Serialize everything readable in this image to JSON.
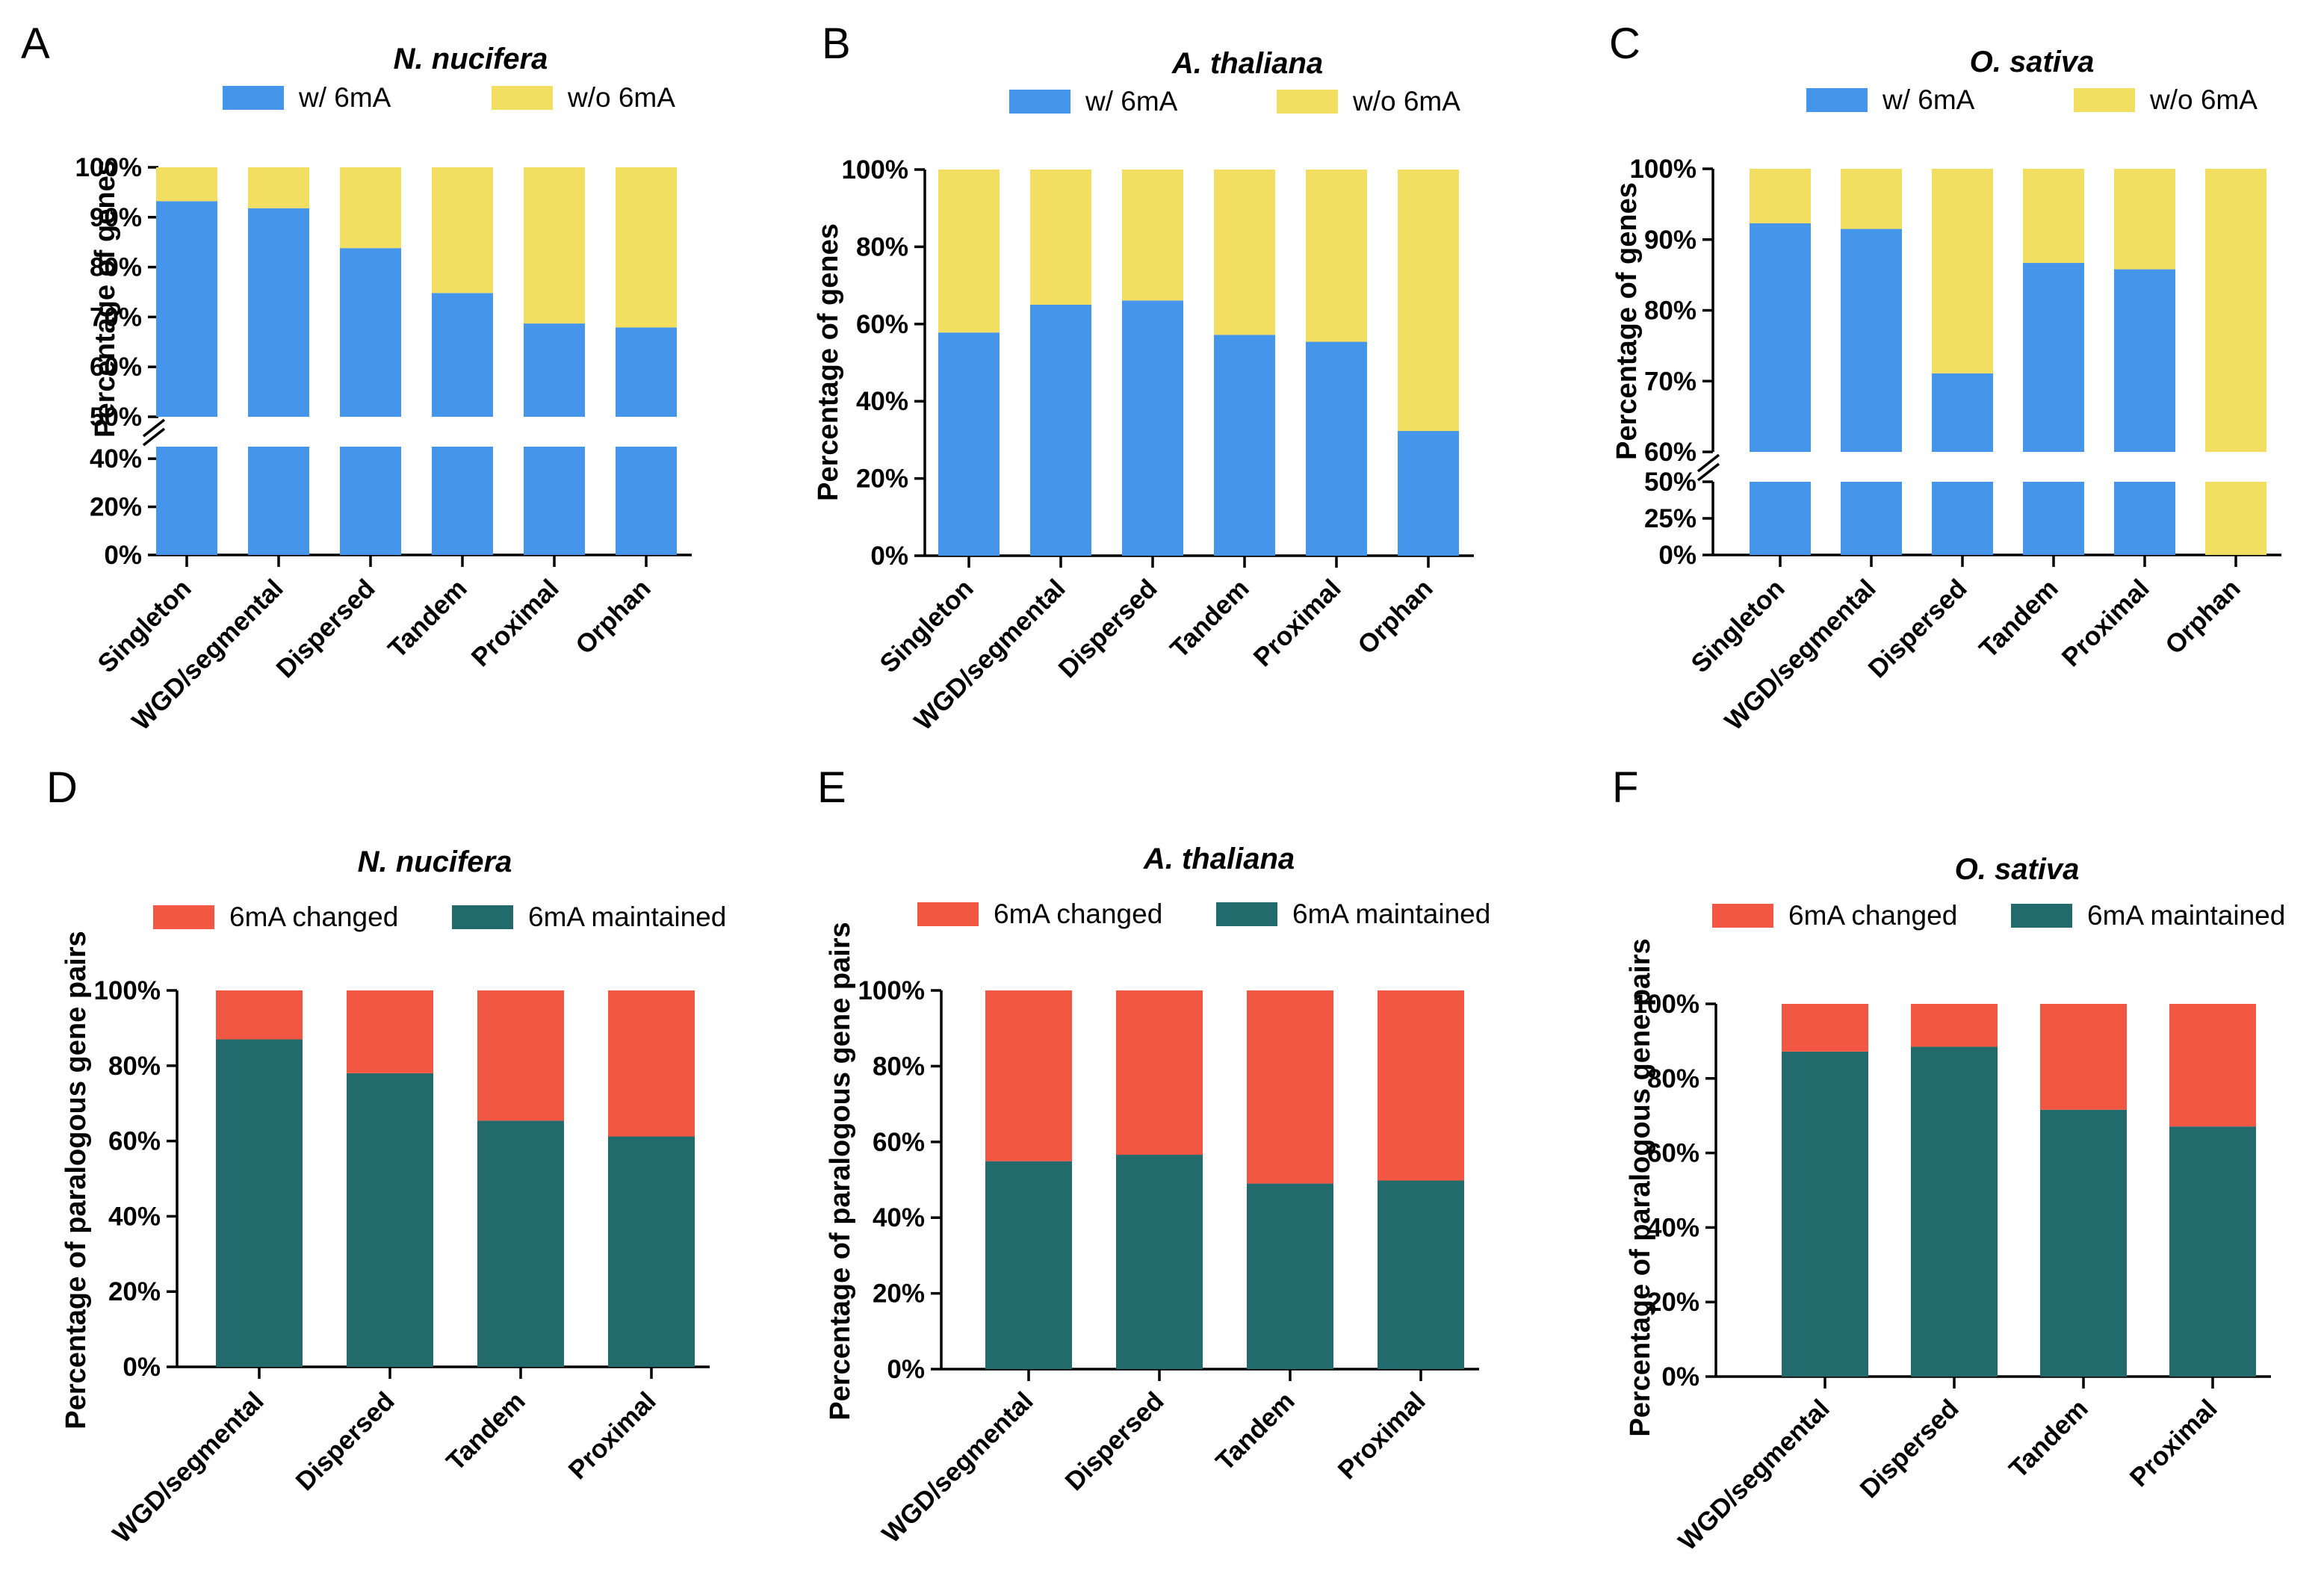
{
  "colors": {
    "with_6mA": "#4595EA",
    "without_6mA": "#F2DE60",
    "changed": "#F25744",
    "maintained": "#236A6C"
  },
  "chart_data": [
    {
      "panel": "A",
      "type": "bar",
      "stacked": true,
      "title": "N. nucifera",
      "ylabel": "Percentage of genes",
      "ylim": [
        0,
        100
      ],
      "axis_break": {
        "lower": [
          0,
          45
        ],
        "upper": [
          50,
          100
        ]
      },
      "yticks_lower": [
        "0%",
        "20%",
        "40%"
      ],
      "yticks_upper": [
        "50%",
        "60%",
        "70%",
        "80%",
        "90%",
        "100%"
      ],
      "categories": [
        "Singleton",
        "WGD/segmental",
        "Dispersed",
        "Tandem",
        "Proximal",
        "Orphan"
      ],
      "series": [
        {
          "name": "w/ 6mA",
          "color_key": "with_6mA",
          "values": [
            93.2,
            91.8,
            83.8,
            74.8,
            68.7,
            67.9
          ]
        },
        {
          "name": "w/o 6mA",
          "color_key": "without_6mA",
          "values": [
            6.8,
            8.2,
            16.2,
            25.2,
            31.3,
            32.1
          ]
        }
      ]
    },
    {
      "panel": "B",
      "type": "bar",
      "stacked": true,
      "title": "A. thaliana",
      "ylabel": "Percentage of genes",
      "ylim": [
        0,
        100
      ],
      "yticks": [
        "0%",
        "20%",
        "40%",
        "60%",
        "80%",
        "100%"
      ],
      "categories": [
        "Singleton",
        "WGD/segmental",
        "Dispersed",
        "Tandem",
        "Proximal",
        "Orphan"
      ],
      "series": [
        {
          "name": "w/ 6mA",
          "color_key": "with_6mA",
          "values": [
            57.8,
            65.0,
            66.1,
            57.2,
            55.4,
            32.3
          ]
        },
        {
          "name": "w/o 6mA",
          "color_key": "without_6mA",
          "values": [
            42.2,
            35.0,
            33.9,
            42.8,
            44.6,
            67.7
          ]
        }
      ]
    },
    {
      "panel": "C",
      "type": "bar",
      "stacked": true,
      "title": "O. sativa",
      "ylabel": "Percentage of genes",
      "ylim": [
        0,
        100
      ],
      "axis_break": {
        "lower": [
          0,
          50
        ],
        "upper": [
          60,
          100
        ]
      },
      "yticks_lower": [
        "0%",
        "25%",
        "50%"
      ],
      "yticks_upper": [
        "60%",
        "70%",
        "80%",
        "90%",
        "100%"
      ],
      "categories": [
        "Singleton",
        "WGD/segmental",
        "Dispersed",
        "Tandem",
        "Proximal",
        "Orphan"
      ],
      "series": [
        {
          "name": "w/ 6mA",
          "color_key": "with_6mA",
          "values": [
            92.3,
            91.5,
            71.1,
            86.7,
            85.8,
            0
          ]
        },
        {
          "name": "w/o 6mA",
          "color_key": "without_6mA",
          "values": [
            7.7,
            8.5,
            28.9,
            13.3,
            14.2,
            100
          ]
        }
      ]
    },
    {
      "panel": "D",
      "type": "bar",
      "stacked": true,
      "title": "N. nucifera",
      "ylabel": "Percentage of paralogous gene pairs",
      "ylim": [
        0,
        100
      ],
      "yticks": [
        "0%",
        "20%",
        "40%",
        "60%",
        "80%",
        "100%"
      ],
      "categories": [
        "WGD/segmental",
        "Dispersed",
        "Tandem",
        "Proximal"
      ],
      "series": [
        {
          "name": "6mA maintained",
          "color_key": "maintained",
          "values": [
            87.0,
            78.0,
            65.4,
            61.2
          ]
        },
        {
          "name": "6mA changed",
          "color_key": "changed",
          "values": [
            13.0,
            22.0,
            34.6,
            38.8
          ]
        }
      ]
    },
    {
      "panel": "E",
      "type": "bar",
      "stacked": true,
      "title": "A. thaliana",
      "ylabel": "Percentage of paralogous gene pairs",
      "ylim": [
        0,
        100
      ],
      "yticks": [
        "0%",
        "20%",
        "40%",
        "60%",
        "80%",
        "100%"
      ],
      "categories": [
        "WGD/segmental",
        "Dispersed",
        "Tandem",
        "Proximal"
      ],
      "series": [
        {
          "name": "6mA maintained",
          "color_key": "maintained",
          "values": [
            54.9,
            56.6,
            49.0,
            49.8
          ]
        },
        {
          "name": "6mA changed",
          "color_key": "changed",
          "values": [
            45.1,
            43.4,
            51.0,
            50.2
          ]
        }
      ]
    },
    {
      "panel": "F",
      "type": "bar",
      "stacked": true,
      "title": "O. sativa",
      "ylabel": "Percentage of paralogous gene pairs",
      "ylim": [
        0,
        100
      ],
      "yticks": [
        "0%",
        "20%",
        "40%",
        "60%",
        "80%",
        "100%"
      ],
      "categories": [
        "WGD/segmental",
        "Dispersed",
        "Tandem",
        "Proximal"
      ],
      "series": [
        {
          "name": "6mA maintained",
          "color_key": "maintained",
          "values": [
            87.2,
            88.5,
            71.6,
            67.1
          ]
        },
        {
          "name": "6mA changed",
          "color_key": "changed",
          "values": [
            12.8,
            11.5,
            28.4,
            32.9
          ]
        }
      ]
    }
  ]
}
